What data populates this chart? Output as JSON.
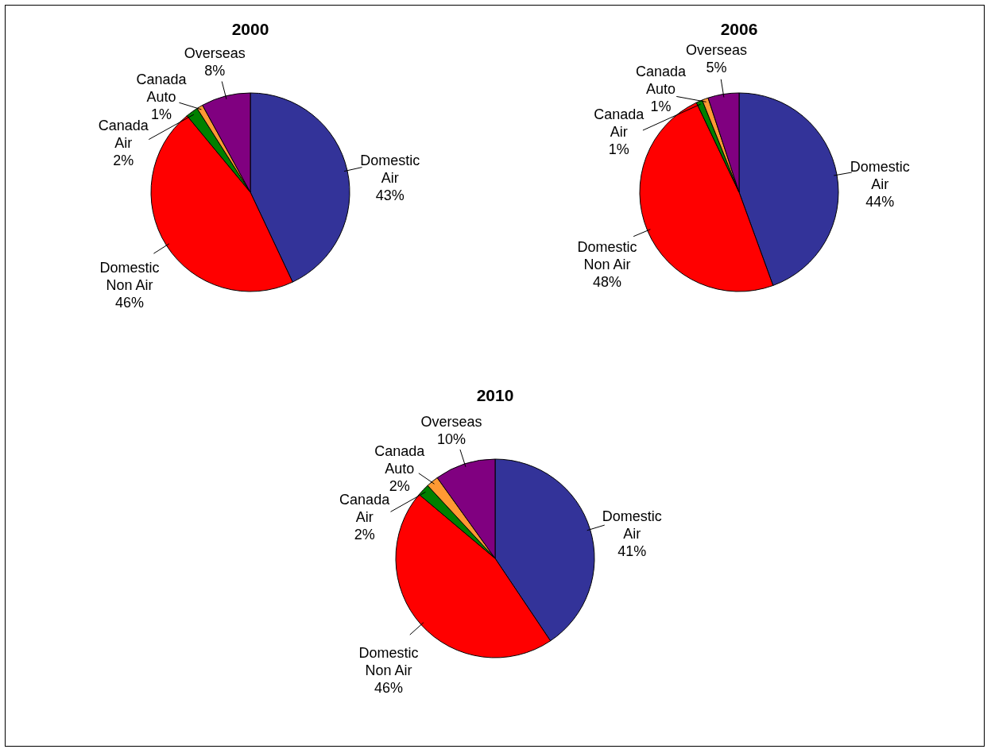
{
  "chart_data": [
    {
      "type": "pie",
      "title": "2000",
      "categories": [
        "Domestic Air",
        "Domestic Non Air",
        "Canada Air",
        "Canada Auto",
        "Overseas"
      ],
      "values": [
        43,
        46,
        2,
        1,
        8
      ],
      "colors": [
        "#333399",
        "#ff0000",
        "#008000",
        "#ff9933",
        "#800080"
      ],
      "value_labels": [
        "43%",
        "46%",
        "2%",
        "1%",
        "8%"
      ]
    },
    {
      "type": "pie",
      "title": "2006",
      "categories": [
        "Domestic Air",
        "Domestic Non Air",
        "Canada Air",
        "Canada Auto",
        "Overseas"
      ],
      "values": [
        44,
        48,
        1,
        1,
        5
      ],
      "colors": [
        "#333399",
        "#ff0000",
        "#008000",
        "#ff9933",
        "#800080"
      ],
      "value_labels": [
        "44%",
        "48%",
        "1%",
        "1%",
        "5%"
      ]
    },
    {
      "type": "pie",
      "title": "2010",
      "categories": [
        "Domestic Air",
        "Domestic Non Air",
        "Canada Air",
        "Canada Auto",
        "Overseas"
      ],
      "values": [
        41,
        46,
        2,
        2,
        10
      ],
      "colors": [
        "#333399",
        "#ff0000",
        "#008000",
        "#ff9933",
        "#800080"
      ],
      "value_labels": [
        "41%",
        "46%",
        "2%",
        "2%",
        "10%"
      ]
    }
  ]
}
